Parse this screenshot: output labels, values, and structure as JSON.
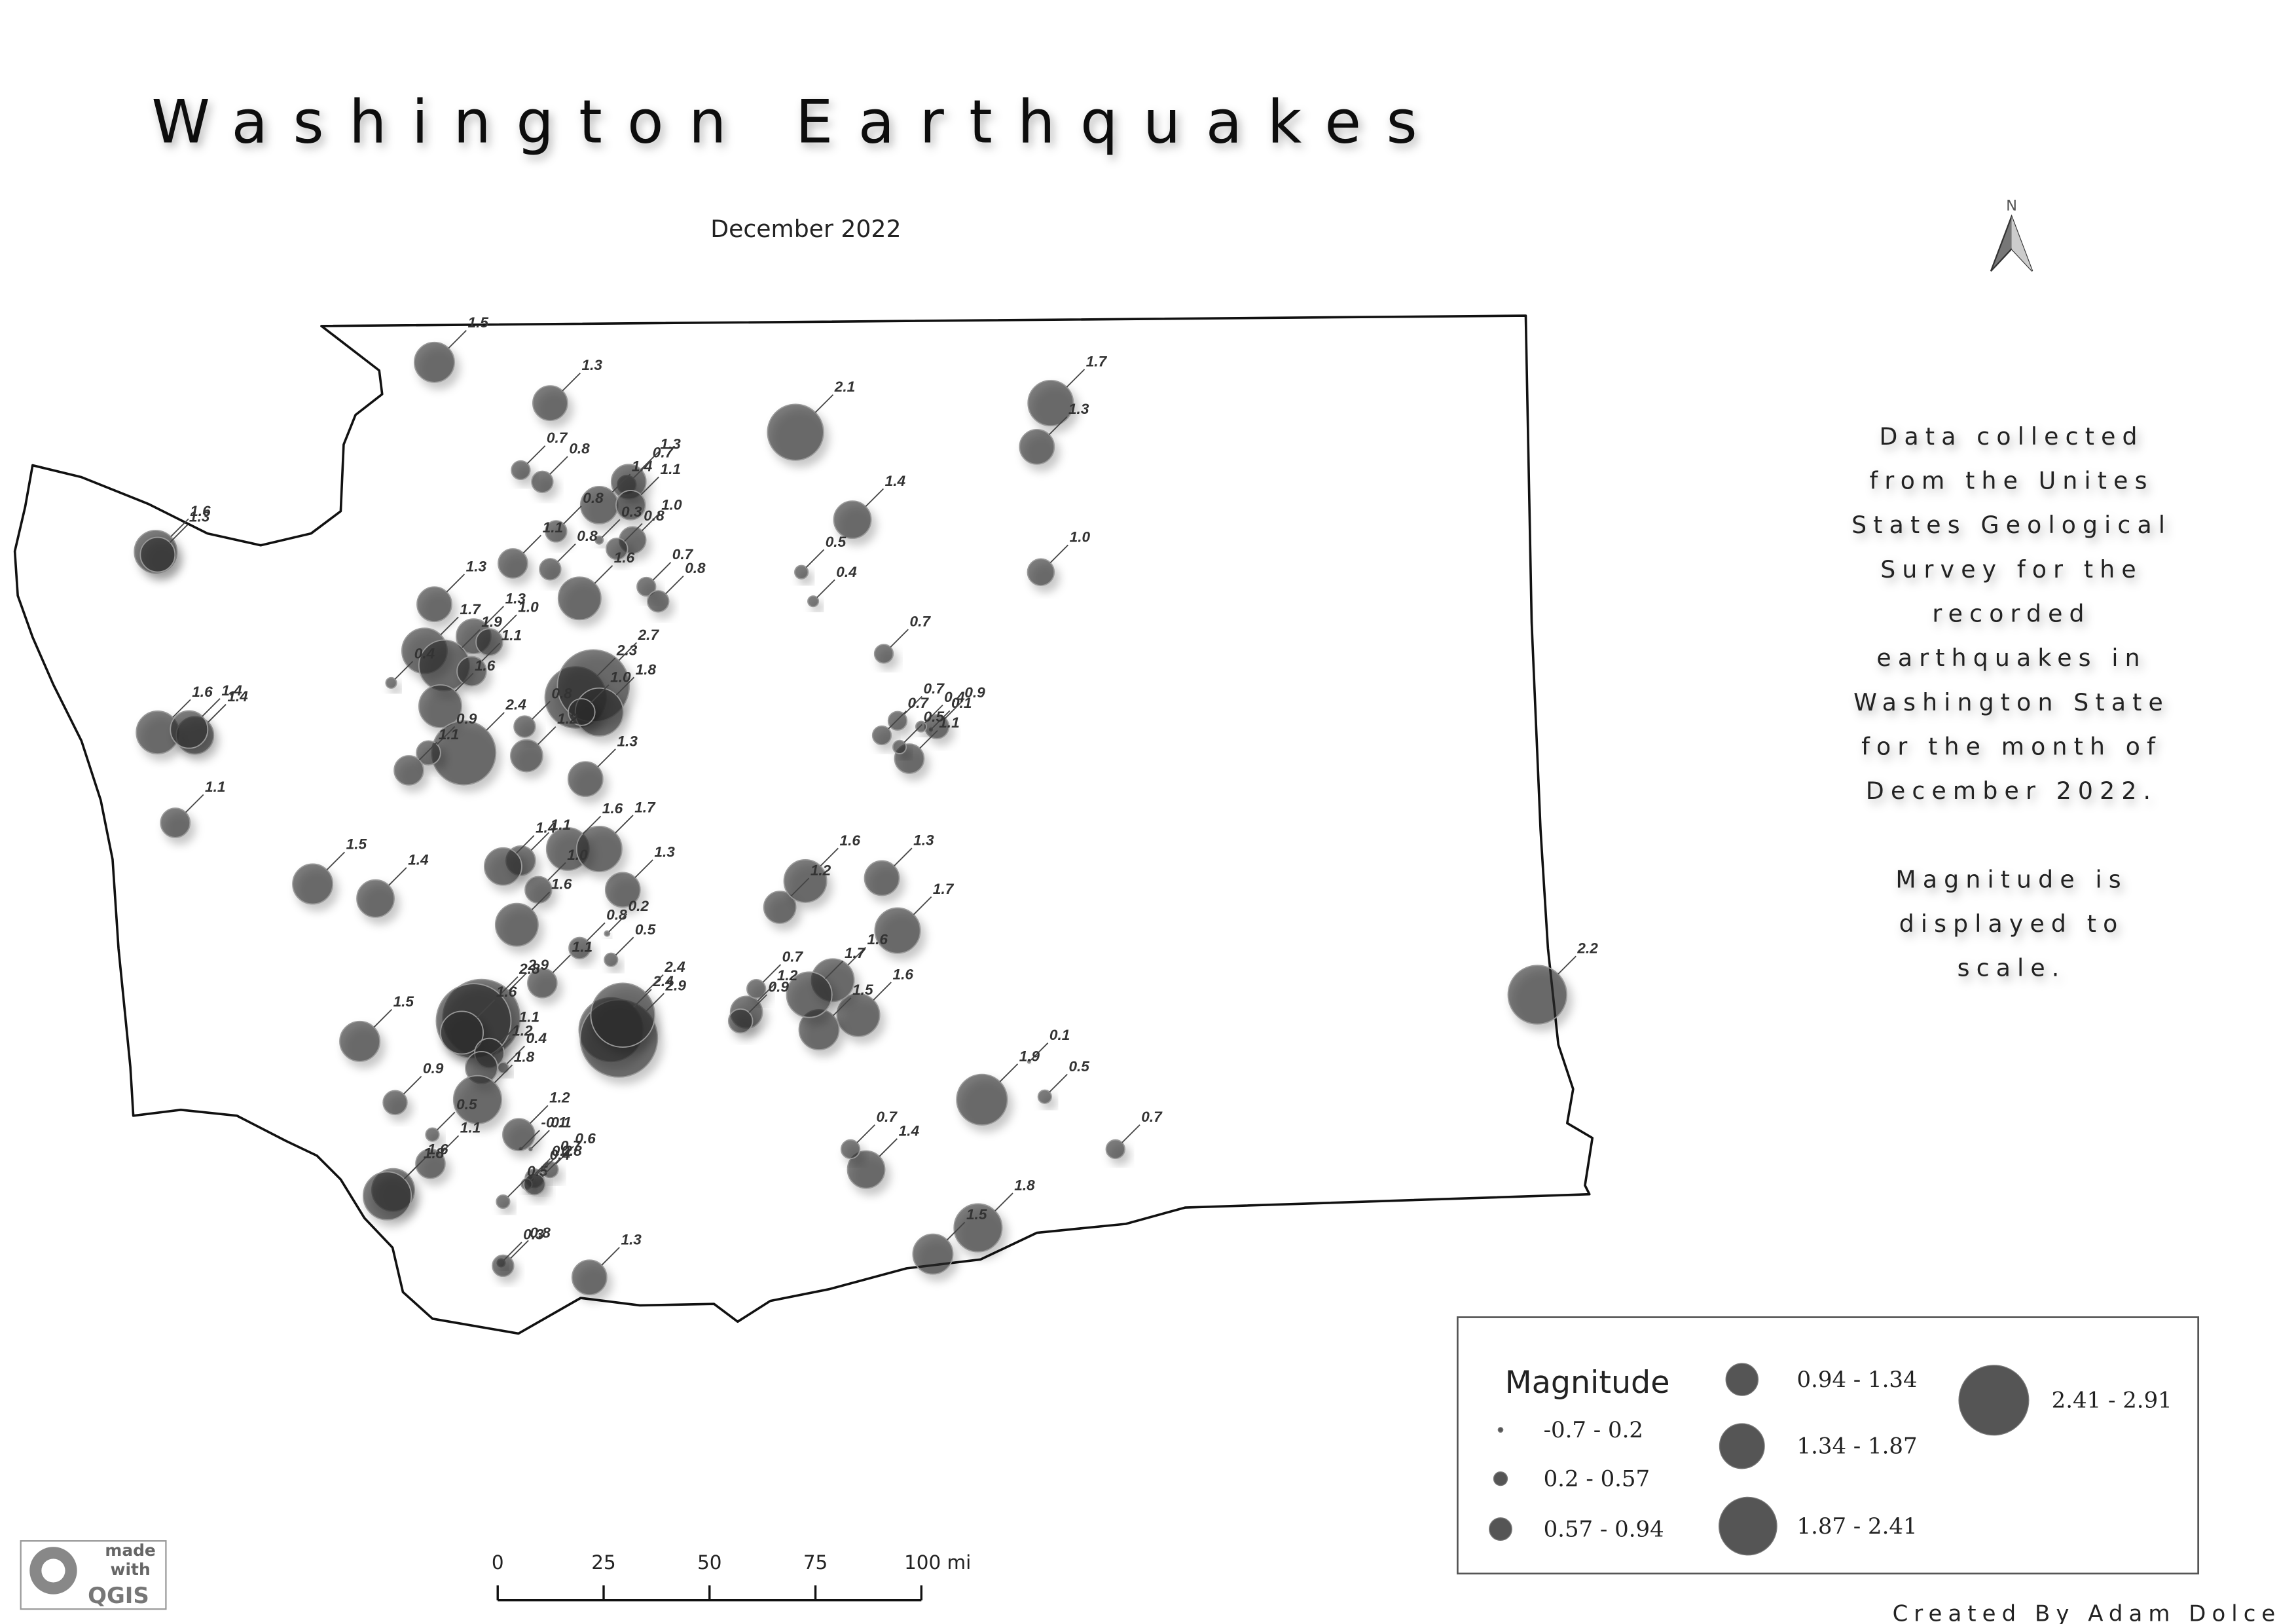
{
  "map": {
    "title": "Washington Earthquakes",
    "subtitle": "December 2022",
    "north": "N",
    "description": [
      [
        "Data collected",
        "from the Unites",
        "States Geological",
        "Survey for the",
        "recorded",
        "earthquakes in",
        "Washington State",
        "for the month of",
        "December 2022."
      ],
      [
        "Magnitude is",
        "displayed to",
        "scale."
      ]
    ],
    "credit": "Created By Adam Dolce",
    "logo": {
      "line1": "made",
      "line2": "with",
      "line3": "QGIS"
    },
    "scale_bar": {
      "ticks": [
        0,
        25,
        50,
        75,
        {
          "value": 100,
          "label": "100 mi"
        }
      ]
    },
    "legend": {
      "title": "Magnitude",
      "classes": [
        {
          "label": "-0.7 - 0.2",
          "max": 0.2
        },
        {
          "label": "0.2 - 0.57",
          "max": 0.57
        },
        {
          "label": "0.57 - 0.94",
          "max": 0.94
        },
        {
          "label": "0.94 - 1.34",
          "max": 1.34
        },
        {
          "label": "1.34 - 1.87",
          "max": 1.87
        },
        {
          "label": "1.87 - 2.41",
          "max": 2.41
        },
        {
          "label": "2.41 - 2.91",
          "max": 2.91
        }
      ]
    },
    "quakes": [
      {
        "lon": -122.6,
        "lat": 48.85,
        "mag": 1.5,
        "label": "1.5"
      },
      {
        "lon": -122.01,
        "lat": 48.71,
        "mag": 1.3,
        "label": "1.3"
      },
      {
        "lon": -120.76,
        "lat": 48.61,
        "mag": 2.1,
        "label": "2.1"
      },
      {
        "lon": -119.46,
        "lat": 48.71,
        "mag": 1.7,
        "label": "1.7"
      },
      {
        "lon": -119.53,
        "lat": 48.56,
        "mag": 1.3,
        "label": "1.3"
      },
      {
        "lon": -120.47,
        "lat": 48.31,
        "mag": 1.4,
        "label": "1.4"
      },
      {
        "lon": -119.51,
        "lat": 48.13,
        "mag": 1.0,
        "label": "1.0"
      },
      {
        "lon": -120.73,
        "lat": 48.13,
        "mag": 0.5,
        "label": "0.5"
      },
      {
        "lon": -120.67,
        "lat": 48.03,
        "mag": 0.4,
        "label": "0.4"
      },
      {
        "lon": -124.02,
        "lat": 48.2,
        "mag": 1.6,
        "label": "1.6"
      },
      {
        "lon": -124.01,
        "lat": 48.19,
        "mag": 1.3,
        "label": "1.3"
      },
      {
        "lon": -122.16,
        "lat": 48.48,
        "mag": 0.7,
        "label": "0.7"
      },
      {
        "lon": -122.05,
        "lat": 48.44,
        "mag": 0.8,
        "label": "0.8"
      },
      {
        "lon": -121.76,
        "lat": 48.36,
        "mag": 1.4,
        "label": "1.4"
      },
      {
        "lon": -121.62,
        "lat": 48.43,
        "mag": 0.7,
        "label": "0.7"
      },
      {
        "lon": -121.61,
        "lat": 48.44,
        "mag": 1.3,
        "label": "1.3"
      },
      {
        "lon": -121.6,
        "lat": 48.36,
        "mag": 1.1,
        "label": "1.1"
      },
      {
        "lon": -121.59,
        "lat": 48.24,
        "mag": 1.0,
        "label": "1.0"
      },
      {
        "lon": -122.2,
        "lat": 48.16,
        "mag": 1.1,
        "label": "1.1"
      },
      {
        "lon": -121.98,
        "lat": 48.27,
        "mag": 0.8,
        "label": "0.8"
      },
      {
        "lon": -121.76,
        "lat": 48.24,
        "mag": 0.3,
        "label": "0.3"
      },
      {
        "lon": -121.67,
        "lat": 48.21,
        "mag": 0.8,
        "label": "0.8"
      },
      {
        "lon": -121.86,
        "lat": 48.04,
        "mag": 1.6,
        "label": "1.6"
      },
      {
        "lon": -122.01,
        "lat": 48.14,
        "mag": 0.8,
        "label": "0.8"
      },
      {
        "lon": -121.52,
        "lat": 48.08,
        "mag": 0.7,
        "label": "0.7"
      },
      {
        "lon": -121.46,
        "lat": 48.03,
        "mag": 0.8,
        "label": "0.8"
      },
      {
        "lon": -122.6,
        "lat": 48.02,
        "mag": 1.3,
        "label": "1.3"
      },
      {
        "lon": -122.4,
        "lat": 47.91,
        "mag": 1.3,
        "label": "1.3"
      },
      {
        "lon": -122.32,
        "lat": 47.89,
        "mag": 1.0,
        "label": "1.0"
      },
      {
        "lon": -122.65,
        "lat": 47.86,
        "mag": 1.7,
        "label": "1.7"
      },
      {
        "lon": -122.82,
        "lat": 47.75,
        "mag": 0.4,
        "label": "0.4"
      },
      {
        "lon": -122.55,
        "lat": 47.81,
        "mag": 1.9,
        "label": "1.9"
      },
      {
        "lon": -122.41,
        "lat": 47.79,
        "mag": 1.1,
        "label": "1.1"
      },
      {
        "lon": -122.57,
        "lat": 47.67,
        "mag": 1.6,
        "label": "1.6"
      },
      {
        "lon": -122.45,
        "lat": 47.51,
        "mag": 2.4,
        "label": "2.4"
      },
      {
        "lon": -122.63,
        "lat": 47.51,
        "mag": 0.9,
        "label": "0.9"
      },
      {
        "lon": -122.73,
        "lat": 47.45,
        "mag": 1.1,
        "label": "1.1"
      },
      {
        "lon": -121.88,
        "lat": 47.7,
        "mag": 2.3,
        "label": "2.3"
      },
      {
        "lon": -121.79,
        "lat": 47.74,
        "mag": 2.7,
        "label": "2.7"
      },
      {
        "lon": -121.76,
        "lat": 47.65,
        "mag": 1.8,
        "label": "1.8"
      },
      {
        "lon": -121.85,
        "lat": 47.65,
        "mag": 1.0,
        "label": "1.0"
      },
      {
        "lon": -122.14,
        "lat": 47.6,
        "mag": 0.8,
        "label": "0.8"
      },
      {
        "lon": -121.83,
        "lat": 47.42,
        "mag": 1.3,
        "label": "1.3"
      },
      {
        "lon": -122.13,
        "lat": 47.5,
        "mag": 1.2,
        "label": "1.2"
      },
      {
        "lon": -124.01,
        "lat": 47.58,
        "mag": 1.6,
        "label": "1.6"
      },
      {
        "lon": -123.82,
        "lat": 47.57,
        "mag": 1.4,
        "label": "1.4"
      },
      {
        "lon": -123.85,
        "lat": 47.59,
        "mag": 1.4,
        "label": "1.4"
      },
      {
        "lon": -123.92,
        "lat": 47.27,
        "mag": 1.1,
        "label": "1.1"
      },
      {
        "lon": -123.22,
        "lat": 47.06,
        "mag": 1.5,
        "label": "1.5"
      },
      {
        "lon": -122.9,
        "lat": 47.01,
        "mag": 1.4,
        "label": "1.4"
      },
      {
        "lon": -122.16,
        "lat": 47.14,
        "mag": 1.1,
        "label": "1.1"
      },
      {
        "lon": -122.25,
        "lat": 47.12,
        "mag": 1.4,
        "label": "1.4"
      },
      {
        "lon": -121.92,
        "lat": 47.18,
        "mag": 1.6,
        "label": "1.6"
      },
      {
        "lon": -121.76,
        "lat": 47.18,
        "mag": 1.7,
        "label": "1.7"
      },
      {
        "lon": -121.64,
        "lat": 47.04,
        "mag": 1.3,
        "label": "1.3"
      },
      {
        "lon": -122.07,
        "lat": 47.04,
        "mag": 1.0,
        "label": "1.0"
      },
      {
        "lon": -122.18,
        "lat": 46.92,
        "mag": 1.6,
        "label": "1.6"
      },
      {
        "lon": -121.86,
        "lat": 46.84,
        "mag": 0.8,
        "label": "0.8"
      },
      {
        "lon": -121.7,
        "lat": 46.8,
        "mag": 0.5,
        "label": "0.5"
      },
      {
        "lon": -121.72,
        "lat": 46.89,
        "mag": 0.2,
        "label": "0.2"
      },
      {
        "lon": -120.84,
        "lat": 46.98,
        "mag": 1.2,
        "label": "1.2"
      },
      {
        "lon": -120.71,
        "lat": 47.07,
        "mag": 1.6,
        "label": "1.6"
      },
      {
        "lon": -120.32,
        "lat": 47.08,
        "mag": 1.3,
        "label": "1.3"
      },
      {
        "lon": -120.24,
        "lat": 46.9,
        "mag": 1.7,
        "label": "1.7"
      },
      {
        "lon": -120.31,
        "lat": 47.85,
        "mag": 0.7,
        "label": "0.7"
      },
      {
        "lon": -120.24,
        "lat": 47.62,
        "mag": 0.7,
        "label": "0.7"
      },
      {
        "lon": -120.07,
        "lat": 47.59,
        "mag": 0.1,
        "label": "0.1"
      },
      {
        "lon": -120.04,
        "lat": 47.6,
        "mag": 0.9,
        "label": "0.9"
      },
      {
        "lon": -120.12,
        "lat": 47.6,
        "mag": 0.4,
        "label": "0.4"
      },
      {
        "lon": -120.18,
        "lat": 47.49,
        "mag": 1.1,
        "label": "1.1"
      },
      {
        "lon": -120.32,
        "lat": 47.57,
        "mag": 0.7,
        "label": "0.7"
      },
      {
        "lon": -120.23,
        "lat": 47.53,
        "mag": 0.5,
        "label": "0.5"
      },
      {
        "lon": -116.98,
        "lat": 46.68,
        "mag": 2.2,
        "label": "2.2"
      },
      {
        "lon": -119.57,
        "lat": 46.45,
        "mag": 0.1,
        "label": "0.1"
      },
      {
        "lon": -119.49,
        "lat": 46.33,
        "mag": 0.5,
        "label": "0.5"
      },
      {
        "lon": -119.13,
        "lat": 46.15,
        "mag": 0.7,
        "label": "0.7"
      },
      {
        "lon": -120.4,
        "lat": 46.08,
        "mag": 1.4,
        "label": "1.4"
      },
      {
        "lon": -120.48,
        "lat": 46.15,
        "mag": 0.7,
        "label": "0.7"
      },
      {
        "lon": -119.81,
        "lat": 46.32,
        "mag": 1.9,
        "label": "1.9"
      },
      {
        "lon": -120.44,
        "lat": 46.61,
        "mag": 1.6,
        "label": "1.6"
      },
      {
        "lon": -120.57,
        "lat": 46.73,
        "mag": 1.6,
        "label": "1.6"
      },
      {
        "lon": -120.64,
        "lat": 46.56,
        "mag": 1.5,
        "label": "1.5"
      },
      {
        "lon": -121.01,
        "lat": 46.62,
        "mag": 1.2,
        "label": "1.2"
      },
      {
        "lon": -120.96,
        "lat": 46.7,
        "mag": 0.7,
        "label": "0.7"
      },
      {
        "lon": -121.04,
        "lat": 46.59,
        "mag": 0.9,
        "label": "0.9"
      },
      {
        "lon": -120.69,
        "lat": 46.68,
        "mag": 1.7,
        "label": "1.7"
      },
      {
        "lon": -121.7,
        "lat": 46.56,
        "mag": 2.4,
        "label": "2.4"
      },
      {
        "lon": -121.66,
        "lat": 46.53,
        "mag": 2.9,
        "label": "2.9"
      },
      {
        "lon": -121.64,
        "lat": 46.61,
        "mag": 2.4,
        "label": "2.4"
      },
      {
        "lon": -122.05,
        "lat": 46.72,
        "mag": 1.1,
        "label": "1.1"
      },
      {
        "lon": -122.36,
        "lat": 46.6,
        "mag": 2.9,
        "label": "2.9"
      },
      {
        "lon": -122.4,
        "lat": 46.59,
        "mag": 2.8,
        "label": "2.8"
      },
      {
        "lon": -122.46,
        "lat": 46.55,
        "mag": 1.6,
        "label": "1.6"
      },
      {
        "lon": -122.32,
        "lat": 46.48,
        "mag": 1.1,
        "label": "1.1"
      },
      {
        "lon": -122.36,
        "lat": 46.43,
        "mag": 1.2,
        "label": "1.2"
      },
      {
        "lon": -122.25,
        "lat": 46.43,
        "mag": 0.4,
        "label": "0.4"
      },
      {
        "lon": -122.38,
        "lat": 46.32,
        "mag": 1.8,
        "label": "1.8"
      },
      {
        "lon": -122.98,
        "lat": 46.52,
        "mag": 1.5,
        "label": "1.5"
      },
      {
        "lon": -122.8,
        "lat": 46.31,
        "mag": 0.9,
        "label": "0.9"
      },
      {
        "lon": -122.61,
        "lat": 46.2,
        "mag": 0.5,
        "label": "0.5"
      },
      {
        "lon": -122.62,
        "lat": 46.1,
        "mag": 1.1,
        "label": "1.1"
      },
      {
        "lon": -122.81,
        "lat": 46.01,
        "mag": 1.6,
        "label": "1.6"
      },
      {
        "lon": -122.84,
        "lat": 45.99,
        "mag": 1.8,
        "label": "1.8"
      },
      {
        "lon": -122.16,
        "lat": 46.15,
        "mag": -0.1,
        "label": "-0.1"
      },
      {
        "lon": -122.11,
        "lat": 46.15,
        "mag": 0.1,
        "label": "0.1"
      },
      {
        "lon": -122.01,
        "lat": 46.08,
        "mag": 0.6,
        "label": "0.6"
      },
      {
        "lon": -122.11,
        "lat": 46.05,
        "mag": 0.2,
        "label": "0.2"
      },
      {
        "lon": -122.09,
        "lat": 46.05,
        "mag": 0.7,
        "label": "0.7"
      },
      {
        "lon": -122.17,
        "lat": 46.2,
        "mag": 1.2,
        "label": "1.2"
      },
      {
        "lon": -122.25,
        "lat": 45.97,
        "mag": 0.5,
        "label": "0.5"
      },
      {
        "lon": -122.13,
        "lat": 46.03,
        "mag": 0.4,
        "label": "0.4"
      },
      {
        "lon": -122.09,
        "lat": 46.03,
        "mag": 0.8,
        "label": "0.8"
      },
      {
        "lon": -122.26,
        "lat": 45.76,
        "mag": 0.3,
        "label": "0.3"
      },
      {
        "lon": -122.25,
        "lat": 45.75,
        "mag": 0.8,
        "label": "0.8"
      },
      {
        "lon": -121.81,
        "lat": 45.71,
        "mag": 1.3,
        "label": "1.3"
      },
      {
        "lon": -119.83,
        "lat": 45.88,
        "mag": 1.8,
        "label": "1.8"
      },
      {
        "lon": -120.06,
        "lat": 45.79,
        "mag": 1.5,
        "label": "1.5"
      }
    ]
  }
}
